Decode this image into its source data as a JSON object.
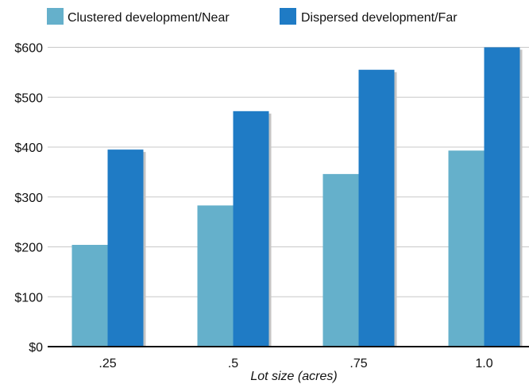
{
  "chart_data": {
    "type": "bar",
    "title": "",
    "xlabel": "Lot size (acres)",
    "ylabel": "",
    "categories": [
      ".25",
      ".5",
      ".75",
      "1.0"
    ],
    "series": [
      {
        "name": "Clustered development/Near",
        "color": "#65b0cb",
        "values": [
          204,
          283,
          346,
          393
        ]
      },
      {
        "name": "Dispersed development/Far",
        "color": "#1f7bc5",
        "values": [
          395,
          472,
          555,
          600
        ]
      }
    ],
    "ylim": [
      0,
      600
    ],
    "yticks": [
      0,
      100,
      200,
      300,
      400,
      500,
      600
    ],
    "ytick_labels": [
      "$0",
      "$100",
      "$200",
      "$300",
      "$400",
      "$500",
      "$600"
    ],
    "grid": true,
    "legend_position": "top"
  }
}
